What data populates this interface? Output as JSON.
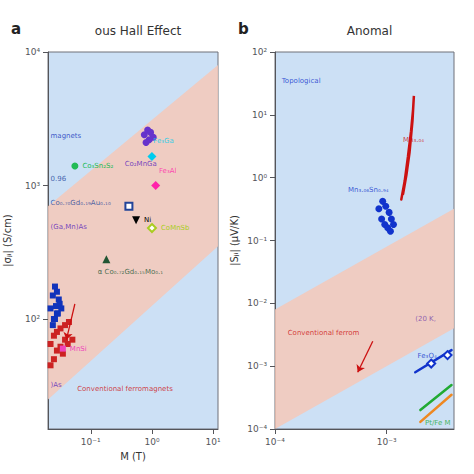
{
  "chart_data": [
    {
      "type": "scatter",
      "panel_label": "a",
      "title": "ous Hall Effect",
      "xlabel": "M (T)",
      "ylabel": "|σⱼᵢ| (S/cm)",
      "log": true,
      "grid": false,
      "color": "#cce0f5",
      "xlim": [
        0.02,
        12
      ],
      "ylim": [
        15,
        10000
      ],
      "xticks": [
        {
          "value": 0.1,
          "label": "10⁻¹"
        },
        {
          "value": 1,
          "label": "10⁰"
        },
        {
          "value": 10,
          "label": "10¹"
        }
      ],
      "yticks": [
        {
          "value": 100,
          "label": "10²"
        },
        {
          "value": 1000,
          "label": "10³"
        },
        {
          "value": 10000,
          "label": "10⁴"
        }
      ],
      "series": [
        {
          "type": "band",
          "color": "#f5c8b8",
          "x": [
            0.02,
            12
          ],
          "low": [
            25,
            350
          ],
          "high": [
            700,
            8000
          ]
        },
        {
          "type": "scatter",
          "marker": "square",
          "color": "#1133bb",
          "x": [
            0.022,
            0.024,
            0.026,
            0.028,
            0.03,
            0.025,
            0.027,
            0.029,
            0.031,
            0.033,
            0.024,
            0.026,
            0.028
          ],
          "values": [
            120,
            150,
            175,
            160,
            140,
            100,
            125,
            110,
            130,
            120,
            90,
            100,
            110
          ]
        },
        {
          "type": "scatter",
          "marker": "square",
          "color": "#cc2222",
          "x": [
            0.022,
            0.025,
            0.028,
            0.032,
            0.038,
            0.044,
            0.035,
            0.042,
            0.05,
            0.022,
            0.025,
            0.028,
            0.032,
            0.038
          ],
          "values": [
            65,
            75,
            80,
            85,
            90,
            95,
            55,
            65,
            70,
            45,
            50,
            58,
            62,
            70
          ]
        },
        {
          "type": "scatter",
          "marker": "square",
          "color": "#ee44bb",
          "label": "MnSi",
          "x": [
            0.035
          ],
          "values": [
            60
          ]
        },
        {
          "type": "scatter",
          "marker": "circle",
          "color": "#22bb55",
          "label": "Co₃Sn₂S₂",
          "x": [
            0.055
          ],
          "values": [
            1400
          ]
        },
        {
          "type": "scatter",
          "marker": "circle",
          "color": "#6633cc",
          "x": [
            0.75,
            0.85,
            0.95,
            1.05,
            0.9,
            0.8
          ],
          "values": [
            2400,
            2600,
            2500,
            2300,
            2200,
            2100
          ]
        },
        {
          "type": "scatter",
          "marker": "diamond",
          "color": "#00ccee",
          "x": [
            1.0
          ],
          "values": [
            1650
          ]
        },
        {
          "type": "scatter",
          "marker": "diamond",
          "color": "#ff22aa",
          "x": [
            1.15
          ],
          "values": [
            1000
          ]
        },
        {
          "type": "scatter",
          "marker": "triangle_down",
          "color": "#000000",
          "label": "Ni",
          "x": [
            0.55
          ],
          "values": [
            550
          ]
        },
        {
          "type": "scatter",
          "marker": "open_diamond",
          "color": "#aacc22",
          "label": "CoMnSb",
          "x": [
            1.0
          ],
          "values": [
            480
          ]
        },
        {
          "type": "scatter",
          "marker": "open_square",
          "color": "#224499",
          "x": [
            0.42
          ],
          "values": [
            700
          ]
        },
        {
          "type": "scatter",
          "marker": "triangle",
          "color": "#225533",
          "x": [
            0.18
          ],
          "values": [
            280
          ]
        },
        {
          "type": "arrow",
          "color": "#cc1111",
          "x": [
            0.055,
            0.04
          ],
          "values": [
            130,
            70
          ]
        }
      ],
      "annotations": [
        {
          "text": "Co₂MnGa",
          "x": 0.3575,
          "y": 1360,
          "color": "#5522bb"
        },
        {
          "text": "Fe₃Ga",
          "x": 1.05,
          "y": 2024,
          "color": "#00ccee"
        },
        {
          "text": "Fe₃Al",
          "x": 1.3,
          "y": 1200,
          "color": "#ff22aa"
        },
        {
          "text": "magnets",
          "x": 0.022,
          "y": 2200,
          "color": "#1133bb"
        },
        {
          "text": "0.96",
          "x": 0.022,
          "y": 1050,
          "color": "#224499"
        },
        {
          "text": "Co₀.₇₀Gd₀.₁₉Au₀.₁₀",
          "x": 0.022,
          "y": 700,
          "color": "#224499"
        },
        {
          "text": "(Ga,Mn)As",
          "x": 0.022,
          "y": 460,
          "color": "#5522bb"
        },
        {
          "text": "α Co₀.₇₂Gd₀.₁₅Mo₀.₁",
          "x": 0.13,
          "y": 210,
          "color": "#225533"
        },
        {
          "text": ")As",
          "x": 0.022,
          "y": 30,
          "color": "#5522bb"
        },
        {
          "text": "Conventional ferromagnets",
          "x": 0.06,
          "y": 28,
          "color": "#cc1111"
        }
      ]
    },
    {
      "type": "scatter",
      "panel_label": "b",
      "title": "Anomal",
      "ylabel": "|Sⱼᵢ| (μV/K)",
      "log": true,
      "grid": false,
      "color": "#cce0f5",
      "xlim": [
        0.0001,
        0.004
      ],
      "ylim": [
        0.0001,
        100
      ],
      "xticks": [
        {
          "value": 0.0001,
          "label": "10⁻⁴"
        },
        {
          "value": 0.001,
          "label": "10⁻³"
        }
      ],
      "yticks": [
        {
          "value": 0.0001,
          "label": "10⁻⁴"
        },
        {
          "value": 0.001,
          "label": "10⁻³"
        },
        {
          "value": 0.01,
          "label": "10⁻²"
        },
        {
          "value": 0.1,
          "label": "10⁻¹"
        },
        {
          "value": 1,
          "label": "10⁰"
        },
        {
          "value": 10,
          "label": "10¹"
        },
        {
          "value": 100,
          "label": "10²"
        }
      ],
      "series": [
        {
          "type": "band",
          "color": "#f5c8b8",
          "x": [
            0.0001,
            0.004
          ],
          "low": [
            0.0001,
            0.004
          ],
          "high": [
            0.008,
            0.32
          ]
        },
        {
          "type": "scatter",
          "marker": "circle",
          "color": "#1133cc",
          "x": [
            0.00085,
            0.00092,
            0.00098,
            0.00105,
            0.0011,
            0.00115,
            0.0009,
            0.00096,
            0.00102,
            0.00108
          ],
          "values": [
            0.32,
            0.42,
            0.35,
            0.28,
            0.22,
            0.18,
            0.22,
            0.18,
            0.16,
            0.14
          ]
        },
        {
          "type": "line",
          "color": "#cc1111",
          "x": [
            0.00135,
            0.00145,
            0.00155,
            0.00165,
            0.00172,
            0.00175,
            0.0017,
            0.0016,
            0.0015,
            0.0014
          ],
          "values": [
            0.45,
            0.9,
            2.2,
            5.5,
            12,
            20,
            8,
            2.5,
            1.1,
            0.55
          ]
        },
        {
          "type": "line",
          "color": "#1133cc",
          "x": [
            0.0018,
            0.0038
          ],
          "values": [
            0.0008,
            0.0018
          ]
        },
        {
          "type": "scatter",
          "marker": "open_diamond",
          "color": "#1133cc",
          "x": [
            0.0025,
            0.0035
          ],
          "values": [
            0.0011,
            0.0015
          ]
        },
        {
          "type": "line",
          "color": "#22aa33",
          "x": [
            0.002,
            0.0038
          ],
          "values": [
            0.0002,
            0.0005
          ]
        },
        {
          "type": "line",
          "color": "#ee8822",
          "x": [
            0.002,
            0.0038
          ],
          "values": [
            0.00013,
            0.00035
          ]
        },
        {
          "type": "arrow",
          "color": "#cc1111",
          "x": [
            0.00075,
            0.00055
          ],
          "values": [
            0.0025,
            0.0008
          ]
        }
      ],
      "annotations": [
        {
          "text": "Mn₃.₀₄",
          "x": 0.0014,
          "y": 3.5,
          "color": "#cc1111"
        },
        {
          "text": "Mn₃.₀₆Sn₀.₉₄",
          "x": 0.00045,
          "y": 0.55,
          "color": "#1133cc"
        },
        {
          "text": "Fe₃O₄",
          "x": 0.00189,
          "y": 0.00128,
          "color": "#1133cc"
        },
        {
          "text": "Pt/Fe M",
          "x": 0.0022,
          "y": 0.00011,
          "color": "#22aa33"
        },
        {
          "text": "Conventional ferrom",
          "x": 0.00013,
          "y": 0.003,
          "color": "#cc1111"
        },
        {
          "text": "(20 K,",
          "x": 0.0018,
          "y": 0.005,
          "color": "#7744aa"
        },
        {
          "text": "Topological",
          "x": 0.000115,
          "y": 30,
          "color": "#1133cc"
        }
      ]
    }
  ]
}
